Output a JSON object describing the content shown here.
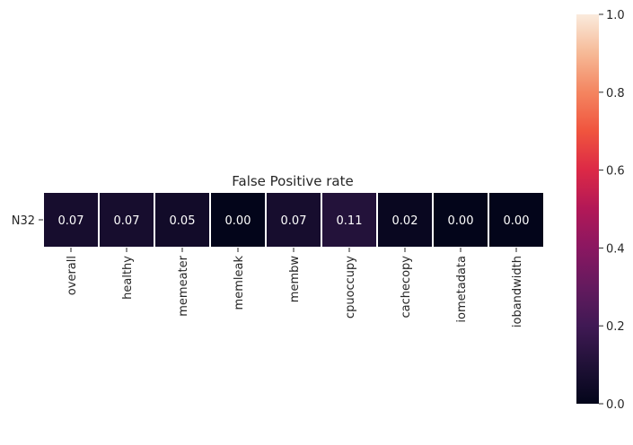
{
  "chart_data": {
    "type": "heatmap",
    "title": "False Positive rate",
    "rows": [
      "N32"
    ],
    "columns": [
      "overall",
      "healthy",
      "memeater",
      "memleak",
      "membw",
      "cpuoccupy",
      "cachecopy",
      "iometadata",
      "iobandwidth"
    ],
    "values": [
      [
        0.07,
        0.07,
        0.05,
        0.0,
        0.07,
        0.11,
        0.02,
        0.0,
        0.0
      ]
    ],
    "value_labels": [
      [
        "0.07",
        "0.07",
        "0.05",
        "0.00",
        "0.07",
        "0.11",
        "0.02",
        "0.00",
        "0.00"
      ]
    ],
    "colorbar": {
      "range": [
        0,
        1
      ],
      "ticks": [
        0.0,
        0.2,
        0.4,
        0.6,
        0.8,
        1.0
      ],
      "tick_labels": [
        "0.0",
        "0.2",
        "0.4",
        "0.6",
        "0.8",
        "1.0"
      ],
      "colormap": "rocket"
    },
    "cell_text_color": "#ffffff",
    "cell_border_color": "#ffffff"
  }
}
